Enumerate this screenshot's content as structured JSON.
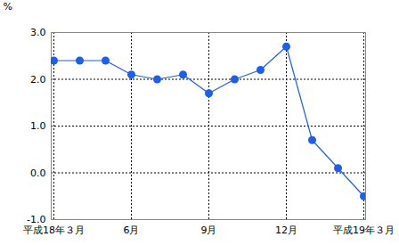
{
  "chart_data": {
    "type": "line",
    "y_label": "%",
    "categories": [
      "平成18年３月",
      null,
      null,
      "6月",
      null,
      null,
      "9月",
      null,
      null,
      "12月",
      null,
      null,
      "平成19年３月"
    ],
    "values": [
      2.4,
      2.4,
      2.4,
      2.1,
      2.0,
      2.1,
      1.7,
      2.0,
      2.2,
      2.7,
      0.7,
      0.1,
      -0.5
    ],
    "color": "#1e5fe6",
    "marker": "circle",
    "ylim": [
      -1.0,
      3.0
    ],
    "yticks": [
      {
        "value": -1.0,
        "label": "-1.0"
      },
      {
        "value": 0.0,
        "label": "0.0"
      },
      {
        "value": 1.0,
        "label": "1.0"
      },
      {
        "value": 2.0,
        "label": "2.0"
      },
      {
        "value": 3.0,
        "label": "3.0"
      }
    ],
    "grid": true
  }
}
